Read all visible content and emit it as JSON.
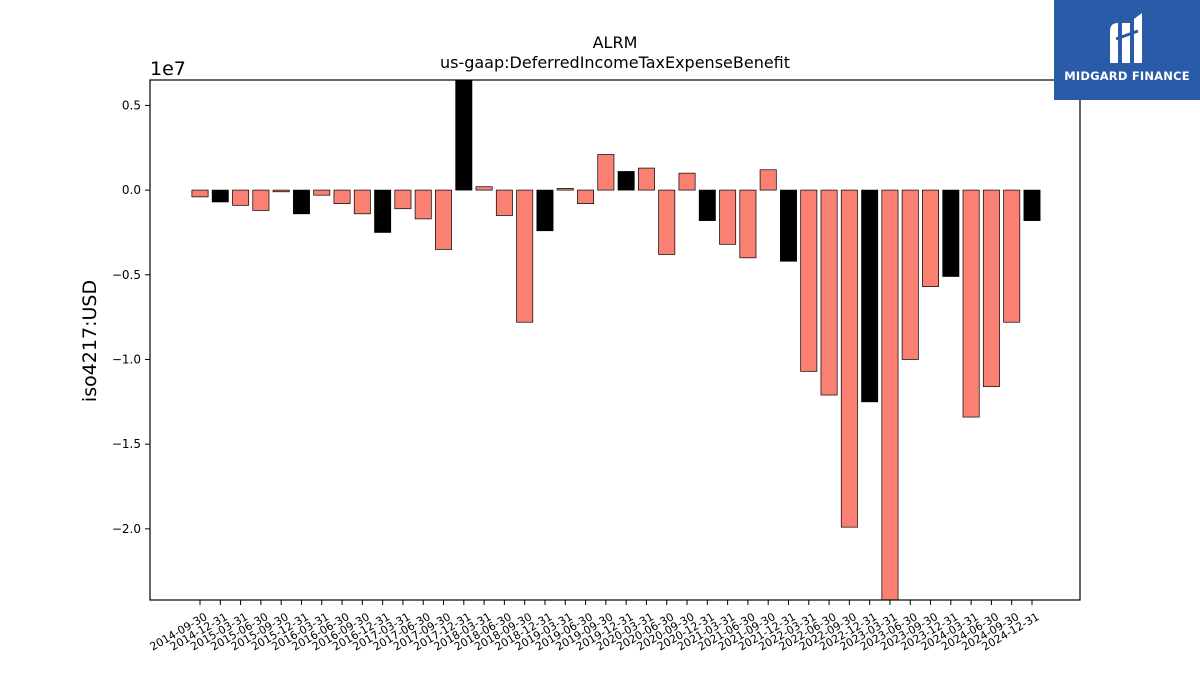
{
  "logo": {
    "text": "MIDGARD FINANCE",
    "bg_color": "#2a5ba8",
    "icon": "midgard-logo-mark"
  },
  "chart_data": {
    "type": "bar",
    "title": "ALRM",
    "subtitle": "us-gaap:DeferredIncomeTaxExpenseBenefit",
    "ylabel": "iso4217:USD",
    "xlabel": "",
    "y_offset_text": "1e7",
    "y_ticks": [
      0.5,
      0.0,
      -0.5,
      -1.0,
      -1.5,
      -2.0
    ],
    "y_tick_labels": [
      "0.5",
      "0.0",
      "−0.5",
      "−1.0",
      "−1.5",
      "−2.0"
    ],
    "ylim": [
      -2.42,
      0.65
    ],
    "colors": {
      "quarterly": "#fa8072",
      "annual": "#000000"
    },
    "categories": [
      "2014-09-30",
      "2014-12-31",
      "2015-03-31",
      "2015-06-30",
      "2015-09-30",
      "2015-12-31",
      "2016-03-31",
      "2016-06-30",
      "2016-09-30",
      "2016-12-31",
      "2017-03-31",
      "2017-06-30",
      "2017-09-30",
      "2017-12-31",
      "2018-03-31",
      "2018-06-30",
      "2018-09-30",
      "2018-12-31",
      "2019-03-31",
      "2019-06-30",
      "2019-09-30",
      "2019-12-31",
      "2020-03-31",
      "2020-06-30",
      "2020-09-30",
      "2020-12-31",
      "2021-03-31",
      "2021-06-30",
      "2021-09-30",
      "2021-12-31",
      "2022-03-31",
      "2022-06-30",
      "2022-09-30",
      "2022-12-31",
      "2023-03-31",
      "2023-06-30",
      "2023-09-30",
      "2023-12-31",
      "2024-03-31",
      "2024-06-30",
      "2024-09-30",
      "2024-12-31"
    ],
    "values": [
      -0.04,
      -0.07,
      -0.09,
      -0.12,
      -0.01,
      -0.14,
      -0.03,
      -0.08,
      -0.14,
      -0.25,
      -0.11,
      -0.17,
      -0.35,
      0.65,
      0.02,
      -0.15,
      -0.78,
      -0.24,
      0.01,
      -0.08,
      0.21,
      0.11,
      0.13,
      -0.38,
      0.1,
      -0.18,
      -0.32,
      -0.4,
      0.12,
      -0.42,
      -1.07,
      -1.21,
      -1.99,
      -1.25,
      -2.42,
      -1.0,
      -0.57,
      -0.51,
      -1.34,
      -1.16,
      -0.78,
      -0.18
    ],
    "bar_kind": [
      "q",
      "a",
      "q",
      "q",
      "q",
      "a",
      "q",
      "q",
      "q",
      "a",
      "q",
      "q",
      "q",
      "a",
      "q",
      "q",
      "q",
      "a",
      "q",
      "q",
      "q",
      "a",
      "q",
      "q",
      "q",
      "a",
      "q",
      "q",
      "q",
      "a",
      "q",
      "q",
      "q",
      "a",
      "q",
      "q",
      "q",
      "a",
      "q",
      "q",
      "q",
      "a"
    ]
  }
}
